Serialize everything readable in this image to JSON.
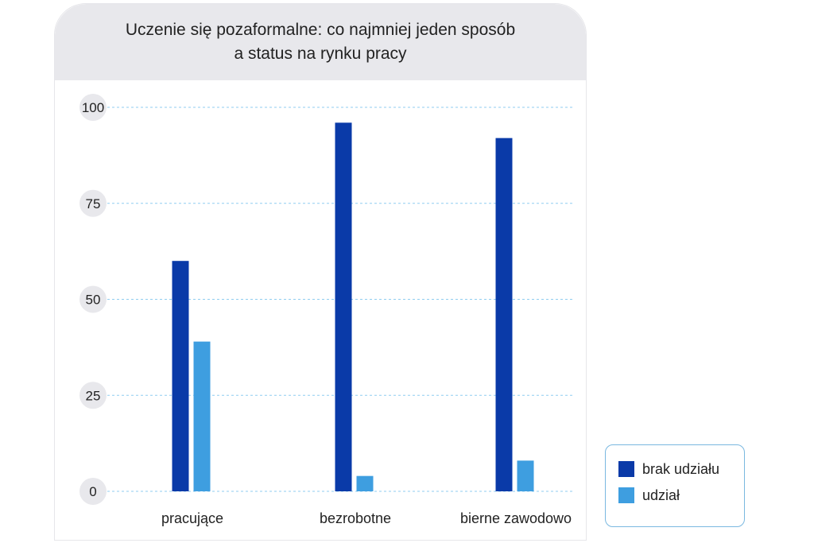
{
  "chart_data": {
    "type": "bar",
    "title": "Uczenie się pozaformalne: co najmniej jeden sposób a status na rynku pracy",
    "title_lines": [
      "Uczenie się pozaformalne: co najmniej jeden sposób",
      "a status na rynku pracy"
    ],
    "categories": [
      "pracujące",
      "bezrobotne",
      "bierne zawodowo"
    ],
    "series": [
      {
        "name": "brak udziału",
        "color": "#0a3aa8",
        "values": [
          60,
          96,
          92
        ]
      },
      {
        "name": "udział",
        "color": "#3e9ee0",
        "values": [
          39,
          4,
          8
        ]
      }
    ],
    "yticks": [
      0,
      25,
      50,
      75,
      100
    ],
    "ylim": [
      0,
      100
    ],
    "xlabel": "",
    "ylabel": "",
    "grid": true,
    "gridline_color": "#8fcdf0",
    "tick_badge_color": "#e8e8ec",
    "legend_position": "bottom-right"
  }
}
